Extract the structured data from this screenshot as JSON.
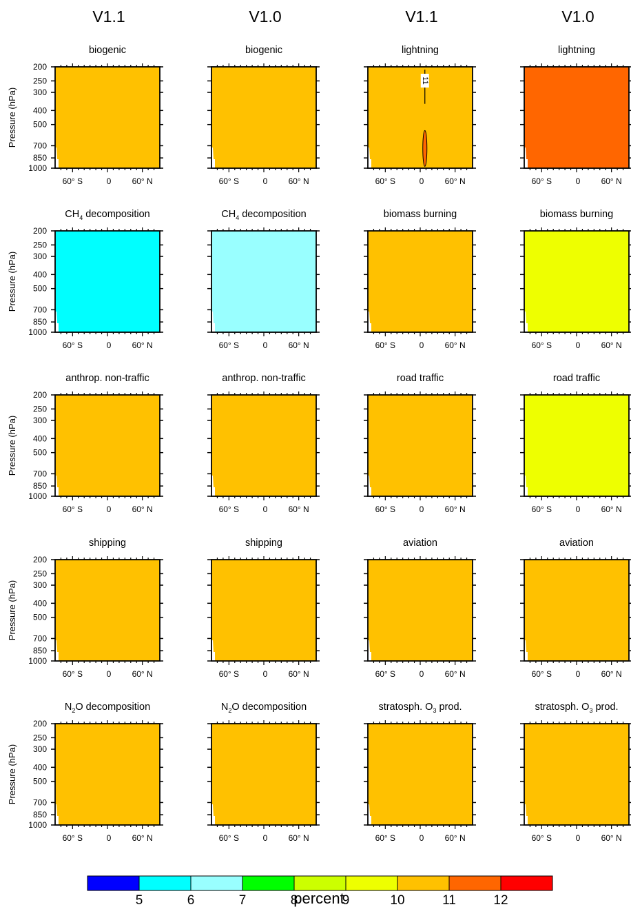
{
  "chart_data": {
    "type": "heatmap",
    "column_titles": [
      "V1.1",
      "V1.0",
      "V1.1",
      "V1.0"
    ],
    "y_axis": {
      "label": "Pressure (hPa)",
      "ticks": [
        200,
        250,
        300,
        400,
        500,
        700,
        850,
        1000
      ],
      "ylim": [
        200,
        1000
      ],
      "scale": "log",
      "inverted": true
    },
    "x_axis": {
      "tick_labels": [
        "60° S",
        "0",
        "60° N"
      ],
      "tick_values": [
        -60,
        0,
        60
      ],
      "xlim": [
        -90,
        90
      ]
    },
    "colorbar": {
      "label": "percent",
      "boundaries": [
        5,
        6,
        7,
        8,
        9,
        10,
        11,
        12
      ],
      "colors": [
        "#0000ff",
        "#00ffff",
        "#99ffff",
        "#00ff00",
        "#ccff00",
        "#eeff00",
        "#ffc100",
        "#ff6600",
        "#ff0000"
      ]
    },
    "panels": [
      {
        "row": 0,
        "col": 0,
        "title": "biogenic",
        "fill": "#ffc100",
        "value_range": "10-11"
      },
      {
        "row": 0,
        "col": 1,
        "title": "biogenic",
        "fill": "#ffc100",
        "value_range": "10-11"
      },
      {
        "row": 0,
        "col": 2,
        "title": "lightning",
        "fill": "#ffc100",
        "value_range": "10-11",
        "contour": {
          "level": "11",
          "label": "11"
        }
      },
      {
        "row": 0,
        "col": 3,
        "title": "lightning",
        "fill": "#ff6600",
        "value_range": "11-12"
      },
      {
        "row": 1,
        "col": 0,
        "title_pre": "CH",
        "title_sub": "4",
        "title_post": " decomposition",
        "fill": "#00ffff",
        "value_range": "5-6"
      },
      {
        "row": 1,
        "col": 1,
        "title_pre": "CH",
        "title_sub": "4",
        "title_post": " decomposition",
        "fill": "#99ffff",
        "value_range": "6-7"
      },
      {
        "row": 1,
        "col": 2,
        "title": "biomass burning",
        "fill": "#ffc100",
        "value_range": "10-11"
      },
      {
        "row": 1,
        "col": 3,
        "title": "biomass burning",
        "fill": "#eeff00",
        "value_range": "9-10"
      },
      {
        "row": 2,
        "col": 0,
        "title": "anthrop. non-traffic",
        "fill": "#ffc100",
        "value_range": "10-11"
      },
      {
        "row": 2,
        "col": 1,
        "title": "anthrop. non-traffic",
        "fill": "#ffc100",
        "value_range": "10-11"
      },
      {
        "row": 2,
        "col": 2,
        "title": "road traffic",
        "fill": "#ffc100",
        "value_range": "10-11"
      },
      {
        "row": 2,
        "col": 3,
        "title": "road traffic",
        "fill": "#eeff00",
        "value_range": "9-10"
      },
      {
        "row": 3,
        "col": 0,
        "title": "shipping",
        "fill": "#ffc100",
        "value_range": "10-11"
      },
      {
        "row": 3,
        "col": 1,
        "title": "shipping",
        "fill": "#ffc100",
        "value_range": "10-11"
      },
      {
        "row": 3,
        "col": 2,
        "title": "aviation",
        "fill": "#ffc100",
        "value_range": "10-11"
      },
      {
        "row": 3,
        "col": 3,
        "title": "aviation",
        "fill": "#ffc100",
        "value_range": "10-11"
      },
      {
        "row": 4,
        "col": 0,
        "title_pre": "N",
        "title_sub": "2",
        "title_post": "O decomposition",
        "fill": "#ffc100",
        "value_range": "10-11"
      },
      {
        "row": 4,
        "col": 1,
        "title_pre": "N",
        "title_sub": "2",
        "title_post": "O decomposition",
        "fill": "#ffc100",
        "value_range": "10-11"
      },
      {
        "row": 4,
        "col": 2,
        "title_pre": "stratosph. O",
        "title_sub": "3",
        "title_post": " prod.",
        "fill": "#ffc100",
        "value_range": "10-11"
      },
      {
        "row": 4,
        "col": 3,
        "title_pre": "stratosph. O",
        "title_sub": "3",
        "title_post": " prod.",
        "fill": "#ffc100",
        "value_range": "10-11"
      }
    ]
  }
}
